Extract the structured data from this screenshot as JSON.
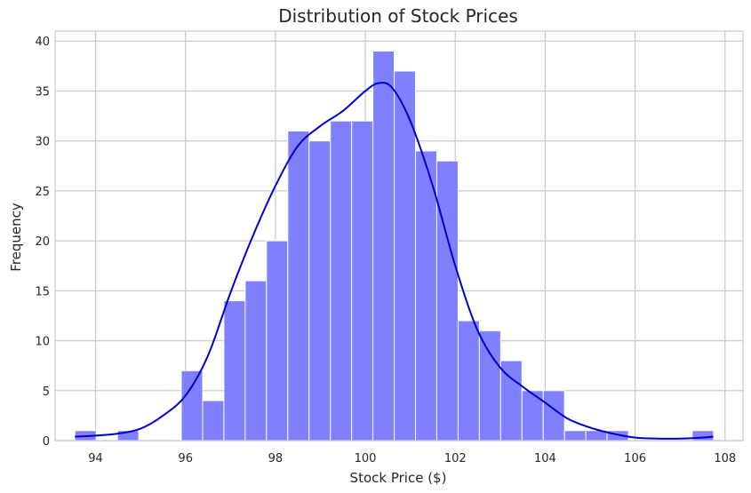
{
  "chart_data": {
    "type": "bar",
    "title": "Distribution of Stock Prices",
    "xlabel": "Stock Price ($)",
    "ylabel": "Frequency",
    "xlim": [
      93.1,
      108.4
    ],
    "ylim": [
      0,
      41
    ],
    "xticks": [
      94,
      96,
      98,
      100,
      102,
      104,
      106,
      108
    ],
    "yticks": [
      0,
      5,
      10,
      15,
      20,
      25,
      30,
      35,
      40
    ],
    "grid": true,
    "bin_start": 93.54,
    "bin_width": 0.4735,
    "values": [
      1,
      0,
      1,
      0,
      0,
      7,
      4,
      14,
      16,
      20,
      31,
      30,
      32,
      32,
      39,
      37,
      29,
      28,
      12,
      11,
      8,
      5,
      5,
      1,
      1,
      1,
      0,
      0,
      0,
      1
    ],
    "kde": {
      "x": [
        93.54,
        94.0,
        94.5,
        95.0,
        95.5,
        96.0,
        96.5,
        97.0,
        97.5,
        98.0,
        98.5,
        99.0,
        99.5,
        100.0,
        100.3,
        100.6,
        101.0,
        101.5,
        102.0,
        102.5,
        103.0,
        103.5,
        104.0,
        104.5,
        105.0,
        105.5,
        106.0,
        106.5,
        107.0,
        107.5,
        107.74
      ],
      "y": [
        0.4,
        0.5,
        0.7,
        1.2,
        2.5,
        4.5,
        8.5,
        14.8,
        20.5,
        25.5,
        29.5,
        31.5,
        33.0,
        35.0,
        35.8,
        35.3,
        32.0,
        25.5,
        17.5,
        11.0,
        7.3,
        5.4,
        3.8,
        2.2,
        1.3,
        0.7,
        0.3,
        0.2,
        0.2,
        0.3,
        0.4
      ]
    },
    "colors": {
      "bar": "#8080ff",
      "bar_edge": "#ffffff",
      "kde_line": "#0000cd",
      "grid": "#cccccc",
      "background": "#ffffff"
    }
  }
}
